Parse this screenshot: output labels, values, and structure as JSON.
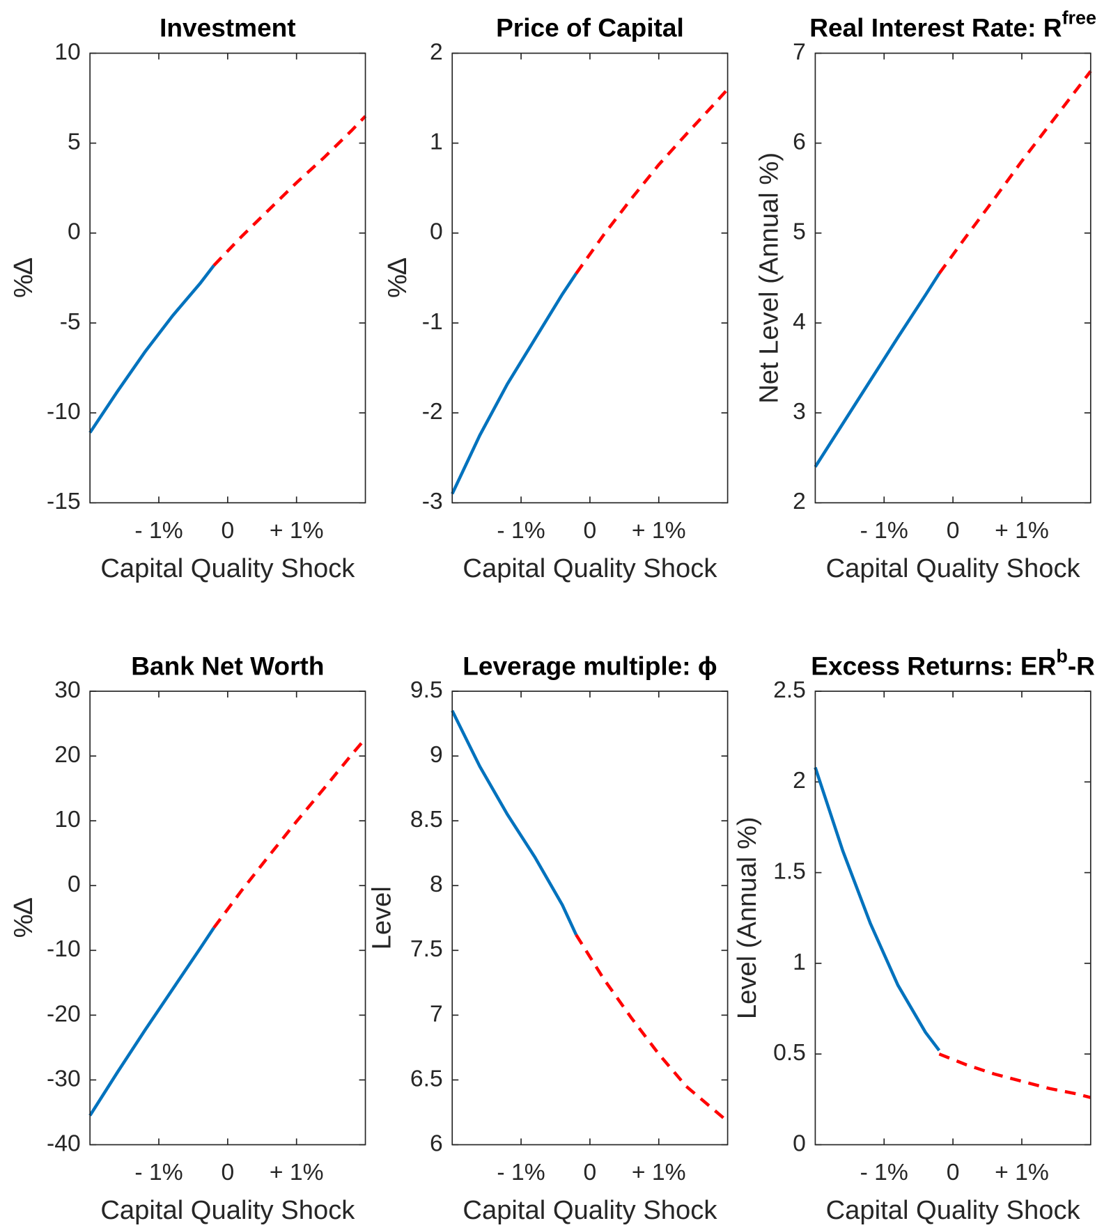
{
  "chart_data": [
    {
      "type": "line",
      "title": [
        {
          "text": "Investment"
        }
      ],
      "ylabel": "%∆",
      "xlabel": "Capital Quality Shock",
      "x": [
        -2,
        -1.6,
        -1.2,
        -0.8,
        -0.4,
        -0.2,
        0.2,
        0.6,
        1.0,
        1.4,
        1.8,
        2.0
      ],
      "xlim": [
        -2,
        2
      ],
      "xticks": [
        {
          "value": -1,
          "label": "- 1%"
        },
        0,
        {
          "value": 1,
          "label": "+ 1%"
        }
      ],
      "ylim": [
        -15,
        10
      ],
      "yticks": [
        -15,
        -10,
        -5,
        0,
        5,
        10
      ],
      "series": [
        {
          "color": "#0072bd",
          "dashed": false,
          "values": [
            -11.1,
            -8.8,
            -6.6,
            -4.6,
            -2.8,
            -1.8,
            null,
            null,
            null,
            null,
            null,
            null
          ]
        },
        {
          "color": "#ff0000",
          "dashed": true,
          "values": [
            null,
            null,
            null,
            null,
            null,
            -1.8,
            -0.2,
            1.3,
            2.8,
            4.2,
            5.7,
            6.5
          ]
        }
      ]
    },
    {
      "type": "line",
      "title": [
        {
          "text": "Price of Capital"
        }
      ],
      "ylabel": "%∆",
      "xlabel": "Capital Quality Shock",
      "x": [
        -2,
        -1.6,
        -1.2,
        -0.8,
        -0.4,
        -0.2,
        0.2,
        0.6,
        1.0,
        1.4,
        1.8,
        2.0
      ],
      "xlim": [
        -2,
        2
      ],
      "xticks": [
        {
          "value": -1,
          "label": "- 1%"
        },
        0,
        {
          "value": 1,
          "label": "+ 1%"
        }
      ],
      "ylim": [
        -3,
        2
      ],
      "yticks": [
        -3,
        -2,
        -1,
        0,
        1,
        2
      ],
      "series": [
        {
          "color": "#0072bd",
          "dashed": false,
          "values": [
            -2.9,
            -2.25,
            -1.68,
            -1.18,
            -0.68,
            -0.45,
            null,
            null,
            null,
            null,
            null,
            null
          ]
        },
        {
          "color": "#ff0000",
          "dashed": true,
          "values": [
            null,
            null,
            null,
            null,
            null,
            -0.45,
            -0.02,
            0.38,
            0.76,
            1.1,
            1.43,
            1.6
          ]
        }
      ]
    },
    {
      "type": "line",
      "title": [
        {
          "text": "Real Interest Rate: R"
        },
        {
          "text": "free",
          "sup": true
        }
      ],
      "ylabel": "Net Level (Annual %)",
      "xlabel": "Capital Quality Shock",
      "x": [
        -2,
        -1.6,
        -1.2,
        -0.8,
        -0.4,
        -0.2,
        0.2,
        0.6,
        1.0,
        1.4,
        1.8,
        2.0
      ],
      "xlim": [
        -2,
        2
      ],
      "xticks": [
        {
          "value": -1,
          "label": "- 1%"
        },
        0,
        {
          "value": 1,
          "label": "+ 1%"
        }
      ],
      "ylim": [
        2,
        7
      ],
      "yticks": [
        2,
        3,
        4,
        5,
        6,
        7
      ],
      "series": [
        {
          "color": "#0072bd",
          "dashed": false,
          "values": [
            2.4,
            2.88,
            3.36,
            3.84,
            4.31,
            4.55,
            null,
            null,
            null,
            null,
            null,
            null
          ]
        },
        {
          "color": "#ff0000",
          "dashed": true,
          "values": [
            null,
            null,
            null,
            null,
            null,
            4.55,
            4.97,
            5.38,
            5.8,
            6.2,
            6.6,
            6.8
          ]
        }
      ]
    },
    {
      "type": "line",
      "title": [
        {
          "text": "Bank Net Worth"
        }
      ],
      "ylabel": "%∆",
      "xlabel": "Capital Quality Shock",
      "x": [
        -2,
        -1.6,
        -1.2,
        -0.8,
        -0.4,
        -0.2,
        0.2,
        0.6,
        1.0,
        1.4,
        1.8,
        2.0
      ],
      "xlim": [
        -2,
        2
      ],
      "xticks": [
        {
          "value": -1,
          "label": "- 1%"
        },
        0,
        {
          "value": 1,
          "label": "+ 1%"
        }
      ],
      "ylim": [
        -40,
        30
      ],
      "yticks": [
        -40,
        -30,
        -20,
        -10,
        0,
        10,
        20,
        30
      ],
      "series": [
        {
          "color": "#0072bd",
          "dashed": false,
          "values": [
            -35.5,
            -28.8,
            -22.3,
            -16,
            -9.7,
            -6.5,
            null,
            null,
            null,
            null,
            null,
            null
          ]
        },
        {
          "color": "#ff0000",
          "dashed": true,
          "values": [
            null,
            null,
            null,
            null,
            null,
            -6.5,
            -0.8,
            4.6,
            9.9,
            15,
            20.2,
            22.7
          ]
        }
      ]
    },
    {
      "type": "line",
      "title": [
        {
          "text": "Leverage multiple: ϕ"
        }
      ],
      "ylabel": "Level",
      "xlabel": "Capital Quality Shock",
      "x": [
        -2,
        -1.6,
        -1.2,
        -0.8,
        -0.4,
        -0.2,
        0.2,
        0.6,
        1.0,
        1.4,
        1.8,
        2.0
      ],
      "xlim": [
        -2,
        2
      ],
      "xticks": [
        {
          "value": -1,
          "label": "- 1%"
        },
        0,
        {
          "value": 1,
          "label": "+ 1%"
        }
      ],
      "ylim": [
        6,
        9.5
      ],
      "yticks": [
        6,
        6.5,
        7,
        7.5,
        8,
        8.5,
        9,
        9.5
      ],
      "series": [
        {
          "color": "#0072bd",
          "dashed": false,
          "values": [
            9.35,
            8.92,
            8.55,
            8.22,
            7.85,
            7.62,
            null,
            null,
            null,
            null,
            null,
            null
          ]
        },
        {
          "color": "#ff0000",
          "dashed": true,
          "values": [
            null,
            null,
            null,
            null,
            null,
            7.62,
            7.28,
            6.98,
            6.7,
            6.45,
            6.27,
            6.18
          ]
        }
      ]
    },
    {
      "type": "line",
      "title": [
        {
          "text": "Excess Returns: ER"
        },
        {
          "text": "b",
          "sup": true
        },
        {
          "text": "-R"
        }
      ],
      "ylabel": "Level (Annual %)",
      "xlabel": "Capital Quality Shock",
      "x": [
        -2,
        -1.6,
        -1.2,
        -0.8,
        -0.4,
        -0.2,
        0.2,
        0.6,
        1.0,
        1.4,
        1.8,
        2.0
      ],
      "xlim": [
        -2,
        2
      ],
      "xticks": [
        {
          "value": -1,
          "label": "- 1%"
        },
        0,
        {
          "value": 1,
          "label": "+ 1%"
        }
      ],
      "ylim": [
        0,
        2.5
      ],
      "yticks": [
        0,
        0.5,
        1,
        1.5,
        2,
        2.5
      ],
      "series": [
        {
          "color": "#0072bd",
          "dashed": false,
          "values": [
            2.08,
            1.62,
            1.22,
            0.88,
            0.62,
            0.52,
            null,
            null,
            null,
            null,
            null,
            null
          ]
        },
        {
          "color": "#ff0000",
          "dashed": true,
          "values": [
            null,
            null,
            null,
            null,
            null,
            0.5,
            0.44,
            0.39,
            0.35,
            0.31,
            0.28,
            0.26
          ]
        }
      ]
    }
  ]
}
